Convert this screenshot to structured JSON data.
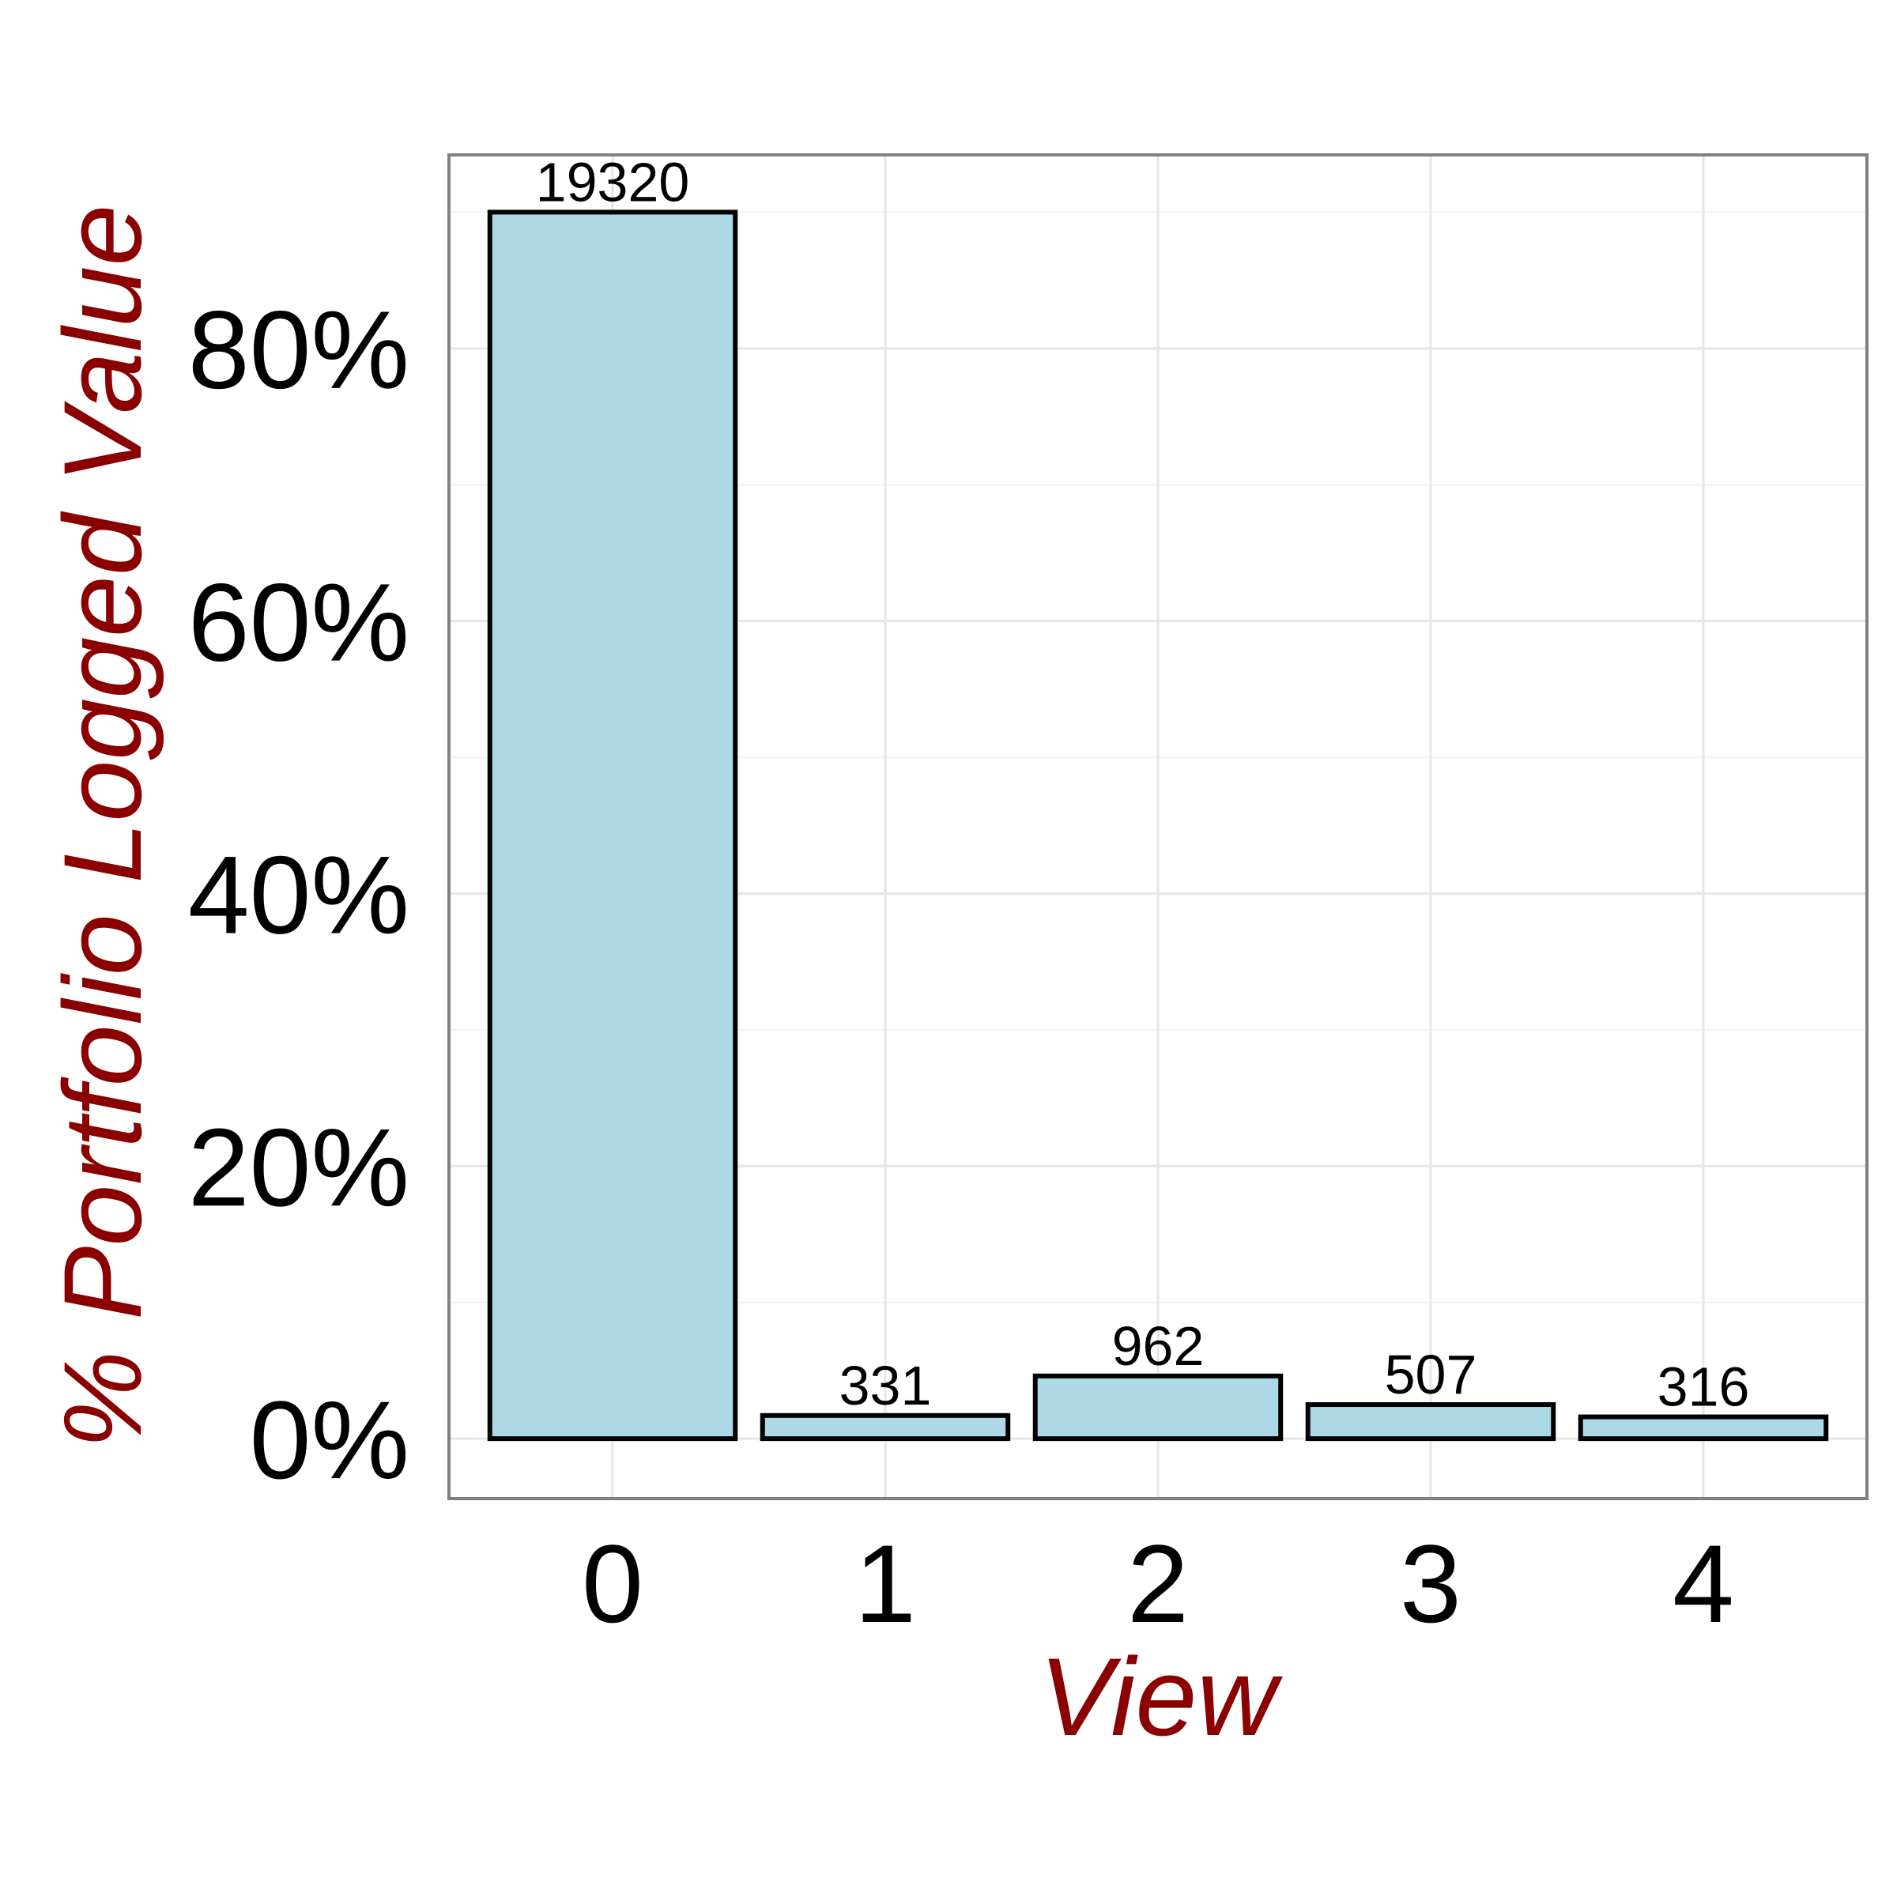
{
  "chart_data": {
    "type": "bar",
    "categories": [
      "0",
      "1",
      "2",
      "3",
      "4"
    ],
    "values": [
      90.0,
      1.7,
      4.6,
      2.5,
      1.6
    ],
    "data_labels": [
      "19320",
      "331",
      "962",
      "507",
      "316"
    ],
    "xlabel": "View",
    "ylabel": "% Portfolio Logged Value",
    "ylim": [
      -4.4,
      94.2
    ],
    "yticks": [
      0,
      20,
      40,
      60,
      80
    ],
    "ytick_labels": [
      "0%",
      "20%",
      "40%",
      "60%",
      "80%"
    ],
    "grid": true,
    "legend": "none",
    "colors": {
      "bar_fill": "#add8e6",
      "bar_stroke": "#000000",
      "axis_title": "#8b0000",
      "panel_border": "#808080",
      "grid": "#e6e6e6"
    }
  }
}
